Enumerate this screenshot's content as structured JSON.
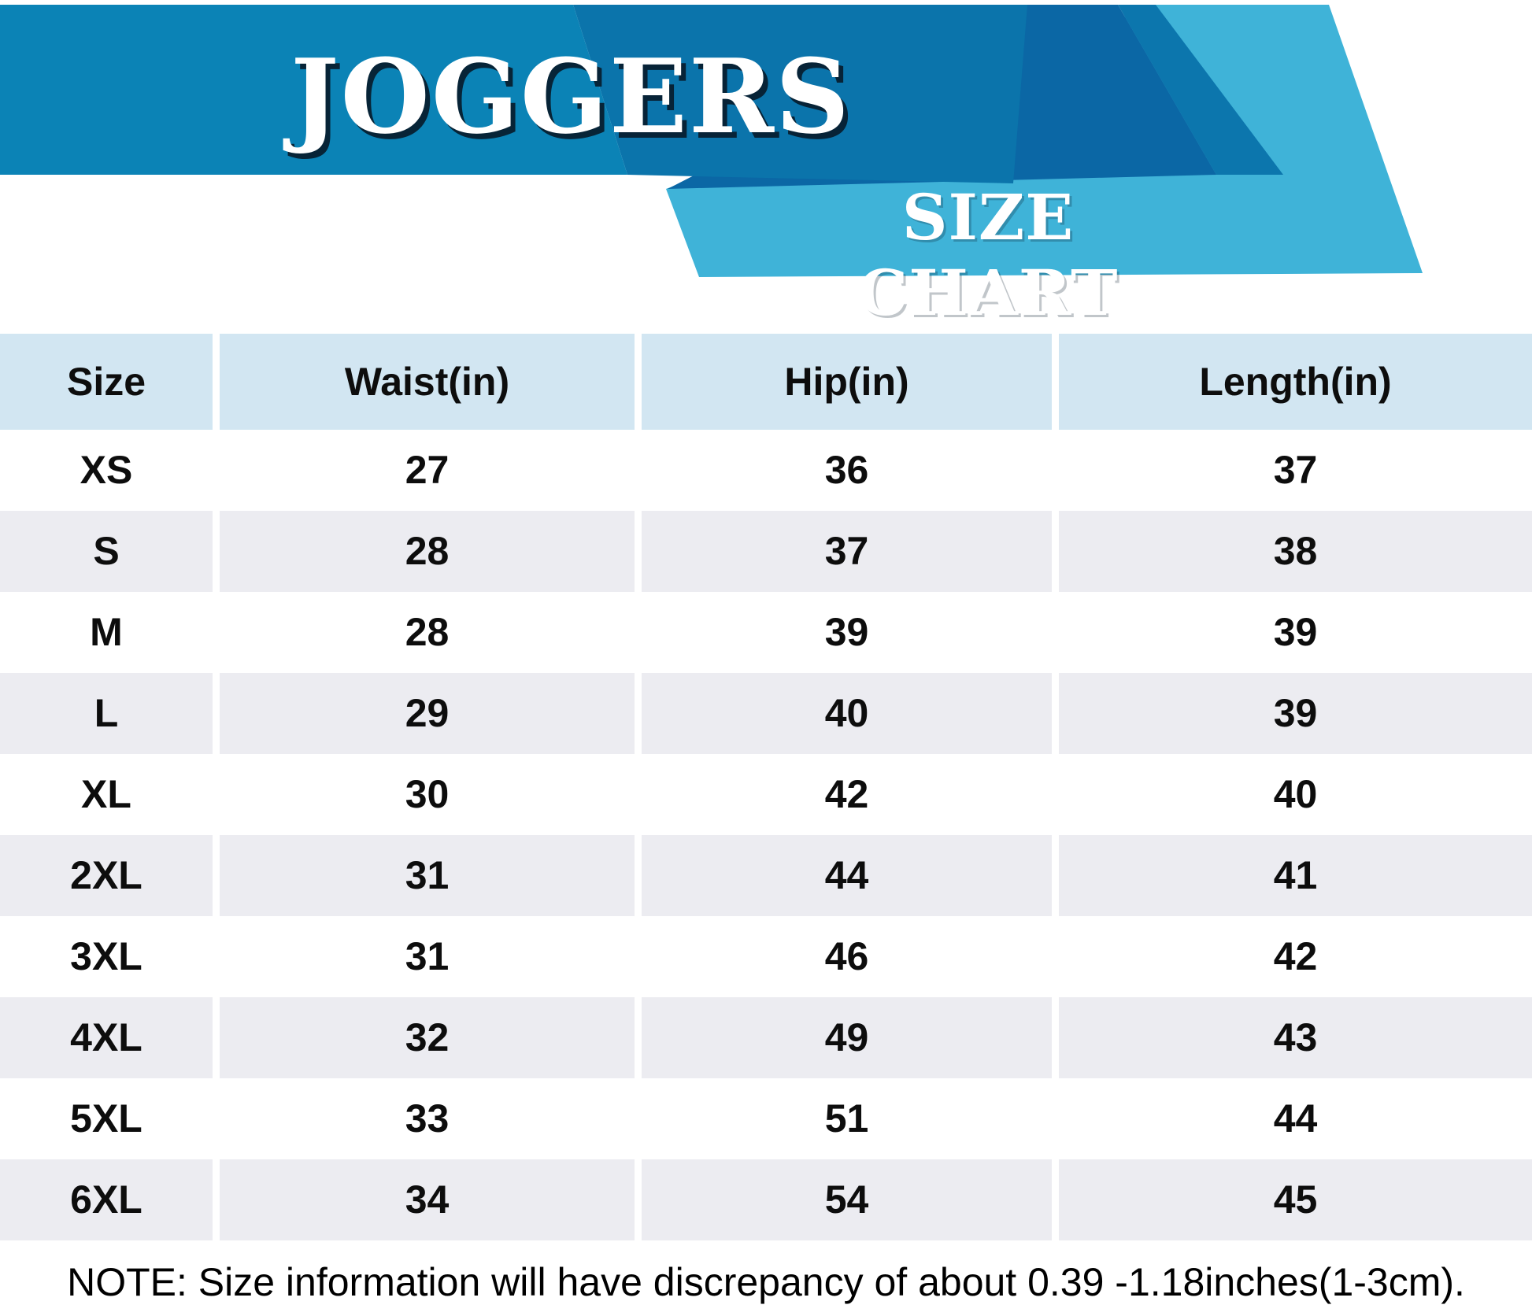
{
  "banner": {
    "title": "JOGGERS",
    "subtitle": "SIZE CHART"
  },
  "chart_data": {
    "type": "table",
    "title": "JOGGERS",
    "subtitle": "SIZE CHART",
    "columns": [
      "Size",
      "Waist(in)",
      "Hip(in)",
      "Length(in)"
    ],
    "rows": [
      [
        "XS",
        "27",
        "36",
        "37"
      ],
      [
        "S",
        "28",
        "37",
        "38"
      ],
      [
        "M",
        "28",
        "39",
        "39"
      ],
      [
        "L",
        "29",
        "40",
        "39"
      ],
      [
        "XL",
        "30",
        "42",
        "40"
      ],
      [
        "2XL",
        "31",
        "44",
        "41"
      ],
      [
        "3XL",
        "31",
        "46",
        "42"
      ],
      [
        "4XL",
        "32",
        "49",
        "43"
      ],
      [
        "5XL",
        "33",
        "51",
        "44"
      ],
      [
        "6XL",
        "34",
        "54",
        "45"
      ]
    ],
    "note": "NOTE: Size information will have discrepancy of about 0.39 -1.18inches(1-3cm)."
  },
  "colors": {
    "banner_main": "#0b83b6",
    "banner_mid_left": "#0b74ab",
    "banner_dark": "#0b67a5",
    "banner_mid_right": "#0c76ad",
    "banner_teal": "#3fb3d8",
    "header_cell_bg": "#d2e6f2",
    "row_alt_bg": "#ececf1",
    "row_bg": "#ffffff",
    "text": "#0d0d0d"
  }
}
